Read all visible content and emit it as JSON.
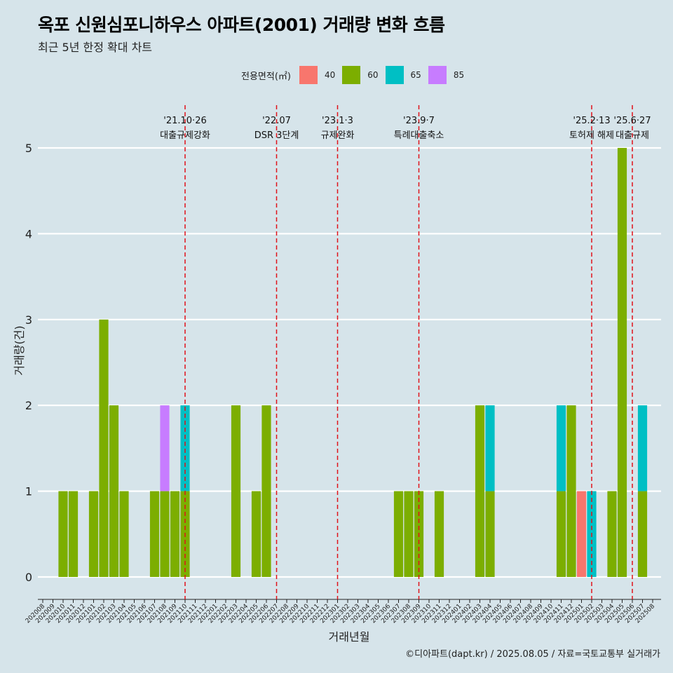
{
  "title": "옥포 신원심포니하우스 아파트(2001) 거래량 변화 흐름",
  "subtitle": "최근 5년 한정 확대 차트",
  "caption": "©디아파트(dapt.kr) / 2025.08.05 / 자료=국토교통부 실거래가",
  "legend": {
    "title": "전용면적(㎡)",
    "items": [
      {
        "label": "40",
        "color": "#f8766d"
      },
      {
        "label": "60",
        "color": "#7cae00"
      },
      {
        "label": "65",
        "color": "#00bfc4"
      },
      {
        "label": "85",
        "color": "#c77cff"
      }
    ]
  },
  "chart_data": {
    "type": "bar",
    "stacked": true,
    "xlabel": "거래년월",
    "ylabel": "거래량(건)",
    "ylim": [
      0,
      5
    ],
    "yticks": [
      0,
      1,
      2,
      3,
      4,
      5
    ],
    "grid": "horizontal",
    "categories": [
      "202008",
      "202009",
      "202010",
      "202011",
      "202012",
      "202101",
      "202102",
      "202103",
      "202104",
      "202105",
      "202106",
      "202107",
      "202108",
      "202109",
      "202110",
      "202111",
      "202112",
      "202201",
      "202202",
      "202203",
      "202204",
      "202205",
      "202206",
      "202207",
      "202208",
      "202209",
      "202210",
      "202211",
      "202212",
      "202301",
      "202302",
      "202303",
      "202304",
      "202305",
      "202306",
      "202307",
      "202308",
      "202309",
      "202310",
      "202311",
      "202312",
      "202401",
      "202402",
      "202403",
      "202404",
      "202405",
      "202406",
      "202407",
      "202408",
      "202409",
      "202410",
      "202411",
      "202412",
      "202501",
      "202502",
      "202503",
      "202504",
      "202505",
      "202506",
      "202507",
      "202508"
    ],
    "series": [
      {
        "name": "40",
        "color": "#f8766d",
        "values": [
          0,
          0,
          0,
          0,
          0,
          0,
          0,
          0,
          0,
          0,
          0,
          0,
          0,
          0,
          0,
          0,
          0,
          0,
          0,
          0,
          0,
          0,
          0,
          0,
          0,
          0,
          0,
          0,
          0,
          0,
          0,
          0,
          0,
          0,
          0,
          0,
          0,
          0,
          0,
          0,
          0,
          0,
          0,
          0,
          0,
          0,
          0,
          0,
          0,
          0,
          0,
          0,
          0,
          1,
          0,
          0,
          0,
          0,
          0,
          0,
          0
        ]
      },
      {
        "name": "60",
        "color": "#7cae00",
        "values": [
          0,
          0,
          1,
          1,
          0,
          1,
          3,
          2,
          1,
          0,
          0,
          1,
          1,
          1,
          1,
          0,
          0,
          0,
          0,
          2,
          0,
          1,
          2,
          0,
          0,
          0,
          0,
          0,
          0,
          0,
          0,
          0,
          0,
          0,
          0,
          1,
          1,
          1,
          0,
          1,
          0,
          0,
          0,
          2,
          1,
          0,
          0,
          0,
          0,
          0,
          0,
          1,
          2,
          0,
          0,
          0,
          1,
          5,
          0,
          1,
          0
        ]
      },
      {
        "name": "65",
        "color": "#00bfc4",
        "values": [
          0,
          0,
          0,
          0,
          0,
          0,
          0,
          0,
          0,
          0,
          0,
          0,
          0,
          0,
          1,
          0,
          0,
          0,
          0,
          0,
          0,
          0,
          0,
          0,
          0,
          0,
          0,
          0,
          0,
          0,
          0,
          0,
          0,
          0,
          0,
          0,
          0,
          0,
          0,
          0,
          0,
          0,
          0,
          0,
          1,
          0,
          0,
          0,
          0,
          0,
          0,
          1,
          0,
          0,
          1,
          0,
          0,
          0,
          0,
          1,
          0
        ]
      },
      {
        "name": "85",
        "color": "#c77cff",
        "values": [
          0,
          0,
          0,
          0,
          0,
          0,
          0,
          0,
          0,
          0,
          0,
          0,
          1,
          0,
          0,
          0,
          0,
          0,
          0,
          0,
          0,
          0,
          0,
          0,
          0,
          0,
          0,
          0,
          0,
          0,
          0,
          0,
          0,
          0,
          0,
          0,
          0,
          0,
          0,
          0,
          0,
          0,
          0,
          0,
          0,
          0,
          0,
          0,
          0,
          0,
          0,
          0,
          0,
          0,
          0,
          0,
          0,
          0,
          0,
          0,
          0
        ]
      }
    ],
    "annotations": [
      {
        "date": "'21.10·26",
        "label": "대출규제강화",
        "x": "202110"
      },
      {
        "date": "'22.07",
        "label": "DSR 3단계",
        "x": "202207"
      },
      {
        "date": "'23.1·3",
        "label": "규제완화",
        "x": "202301"
      },
      {
        "date": "'23.9·7",
        "label": "특례대출축소",
        "x": "202309"
      },
      {
        "date": "'25.2·13",
        "label": "토허제 해제",
        "x": "202502"
      },
      {
        "date": "'25.6·27",
        "label": "대출규제",
        "x": "202506"
      }
    ]
  }
}
